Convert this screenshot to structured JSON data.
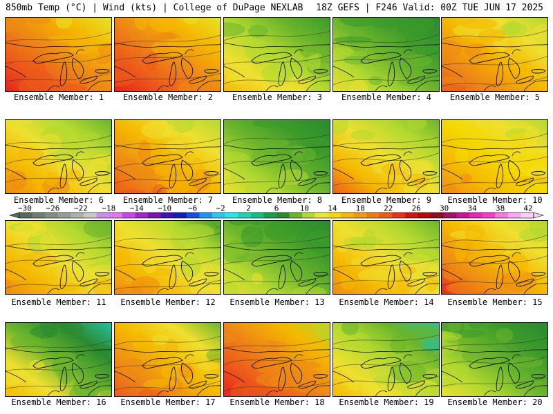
{
  "header": {
    "left_text": "850mb Temp (°C) | Wind (kts) | College of DuPage NEXLAB",
    "right_text": "18Z GEFS | F246 Valid: 00Z TUE JUN 17 2025"
  },
  "members": [
    {
      "label": "Ensemble Member: 1",
      "palette": [
        "#e5e52a",
        "#f5b800",
        "#ee8a14",
        "#ed5a1a",
        "#e8201c"
      ],
      "bias": 0.72
    },
    {
      "label": "Ensemble Member: 2",
      "palette": [
        "#e5e52a",
        "#f5b800",
        "#ee8a14",
        "#ed5a1a",
        "#e8201c"
      ],
      "bias": 0.7
    },
    {
      "label": "Ensemble Member: 3",
      "palette": [
        "#3b9a2a",
        "#6ab42c",
        "#b3d930",
        "#efe030",
        "#f5b800"
      ],
      "bias": 0.45
    },
    {
      "label": "Ensemble Member: 4",
      "palette": [
        "#2a8a30",
        "#3b9a2a",
        "#6ab42c",
        "#b3d930",
        "#efe030"
      ],
      "bias": 0.4
    },
    {
      "label": "Ensemble Member: 5",
      "palette": [
        "#b3d930",
        "#efe030",
        "#f5b800",
        "#ee8a14",
        "#ed5a1a"
      ],
      "bias": 0.55
    },
    {
      "label": "Ensemble Member: 6",
      "palette": [
        "#6ab42c",
        "#b3d930",
        "#efe030",
        "#f5b800",
        "#ee8a14"
      ],
      "bias": 0.55
    },
    {
      "label": "Ensemble Member: 7",
      "palette": [
        "#b3d930",
        "#efe030",
        "#f5b800",
        "#ee8a14",
        "#ed5a1a"
      ],
      "bias": 0.6
    },
    {
      "label": "Ensemble Member: 8",
      "palette": [
        "#2a8a30",
        "#3b9a2a",
        "#6ab42c",
        "#b3d930",
        "#efe030"
      ],
      "bias": 0.45
    },
    {
      "label": "Ensemble Member: 9",
      "palette": [
        "#6ab42c",
        "#b3d930",
        "#efe030",
        "#f5b800",
        "#ed5a1a"
      ],
      "bias": 0.55
    },
    {
      "label": "Ensemble Member: 10",
      "palette": [
        "#b3d930",
        "#efe030",
        "#f5d800",
        "#f5b800",
        "#ee8a14"
      ],
      "bias": 0.45
    },
    {
      "label": "Ensemble Member: 11",
      "palette": [
        "#6ab42c",
        "#b3d930",
        "#efe030",
        "#f5b800",
        "#ee8a14"
      ],
      "bias": 0.55
    },
    {
      "label": "Ensemble Member: 12",
      "palette": [
        "#3b9a2a",
        "#b3d930",
        "#efe030",
        "#f5b800",
        "#ee8a14"
      ],
      "bias": 0.58
    },
    {
      "label": "Ensemble Member: 13",
      "palette": [
        "#2a8a30",
        "#3b9a2a",
        "#6ab42c",
        "#b3d930",
        "#efe030"
      ],
      "bias": 0.55
    },
    {
      "label": "Ensemble Member: 14",
      "palette": [
        "#6ab42c",
        "#b3d930",
        "#efe030",
        "#f5b800",
        "#ee8a14"
      ],
      "bias": 0.55
    },
    {
      "label": "Ensemble Member: 15",
      "palette": [
        "#b3d930",
        "#efe030",
        "#f5b800",
        "#ee8a14",
        "#e8201c"
      ],
      "bias": 0.55
    },
    {
      "label": "Ensemble Member: 16",
      "palette": [
        "#28c0a0",
        "#2a8a30",
        "#6ab42c",
        "#efe030",
        "#f5b800"
      ],
      "bias": 0.5
    },
    {
      "label": "Ensemble Member: 17",
      "palette": [
        "#6ab42c",
        "#efe030",
        "#f5b800",
        "#ee8a14",
        "#ed5a1a"
      ],
      "bias": 0.62
    },
    {
      "label": "Ensemble Member: 18",
      "palette": [
        "#b3d930",
        "#f5b800",
        "#ee8a14",
        "#ed5a1a",
        "#e8201c"
      ],
      "bias": 0.68
    },
    {
      "label": "Ensemble Member: 19",
      "palette": [
        "#28c0a0",
        "#6ab42c",
        "#b3d930",
        "#efe030",
        "#f5b800"
      ],
      "bias": 0.55
    },
    {
      "label": "Ensemble Member: 20",
      "palette": [
        "#2a8a30",
        "#3b9a2a",
        "#6ab42c",
        "#b3d930",
        "#efe030"
      ],
      "bias": 0.4
    }
  ],
  "colorbar": {
    "labels": [
      "−30",
      "−26",
      "−22",
      "−18",
      "−14",
      "−10",
      "−6",
      "−2",
      "2",
      "6",
      "10",
      "14",
      "18",
      "22",
      "26",
      "30",
      "34",
      "38",
      "42"
    ],
    "colors": [
      "#5a6a5a",
      "#6e7e6e",
      "#828e82",
      "#969e96",
      "#aab2aa",
      "#c8c8c8",
      "#c890e6",
      "#dc78f0",
      "#c846e6",
      "#a028c8",
      "#7814b4",
      "#3c14b4",
      "#141eb4",
      "#1450dc",
      "#1e96f0",
      "#28c8f0",
      "#28e6e6",
      "#1ed2b4",
      "#14be82",
      "#14a050",
      "#2a8a30",
      "#6ab42c",
      "#b3d930",
      "#e8e830",
      "#f5d800",
      "#f5b800",
      "#ee9a14",
      "#ee7a14",
      "#ed5a1a",
      "#e8301c",
      "#d01414",
      "#b40a0a",
      "#960a1e",
      "#a01464",
      "#c81496",
      "#e628b4",
      "#f03cc8",
      "#f578dc",
      "#f8a8ee",
      "#fad0f4"
    ]
  }
}
